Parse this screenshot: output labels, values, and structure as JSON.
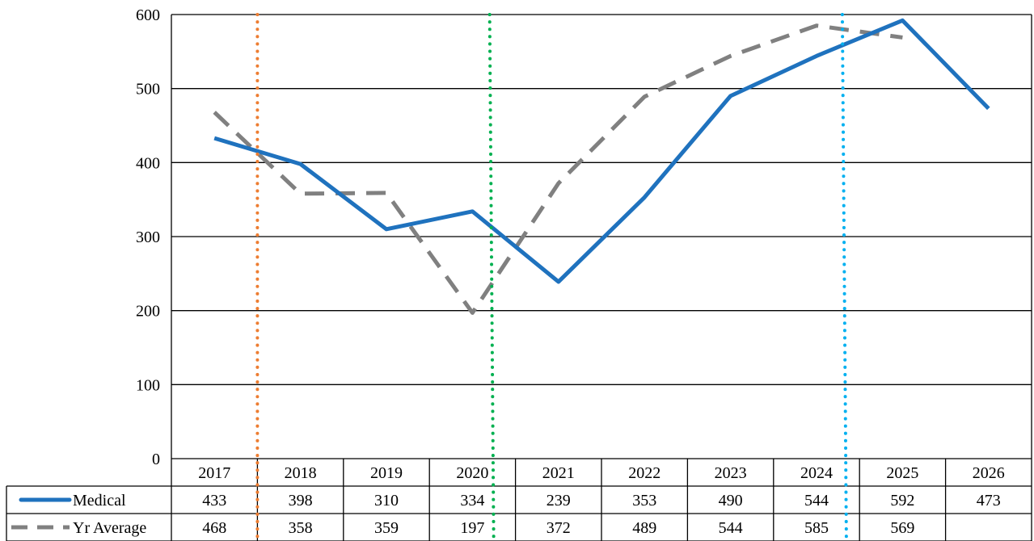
{
  "chart_data": {
    "type": "line",
    "categories": [
      "2017",
      "2018",
      "2019",
      "2020",
      "2021",
      "2022",
      "2023",
      "2024",
      "2025",
      "2026"
    ],
    "ylim": [
      0,
      600
    ],
    "yticks": [
      0,
      100,
      200,
      300,
      400,
      500,
      600
    ],
    "grid": true,
    "series": [
      {
        "name": "Medical",
        "values": [
          433,
          398,
          310,
          334,
          239,
          353,
          490,
          544,
          592,
          473
        ],
        "color": "#1F72BE",
        "style": "solid"
      },
      {
        "name": "Yr Average",
        "values": [
          468,
          358,
          359,
          197,
          372,
          489,
          544,
          585,
          569,
          null
        ],
        "color": "#808080",
        "style": "dashed"
      }
    ],
    "reference_lines": [
      {
        "x": 2017.5,
        "color": "#ED7D31",
        "style": "dotted"
      },
      {
        "x": 2020.2,
        "color": "#00B050",
        "style": "dotted"
      },
      {
        "x": 2024.3,
        "color": "#00B0F0",
        "style": "dotted"
      }
    ],
    "data_table": true,
    "legend": "data-table"
  }
}
